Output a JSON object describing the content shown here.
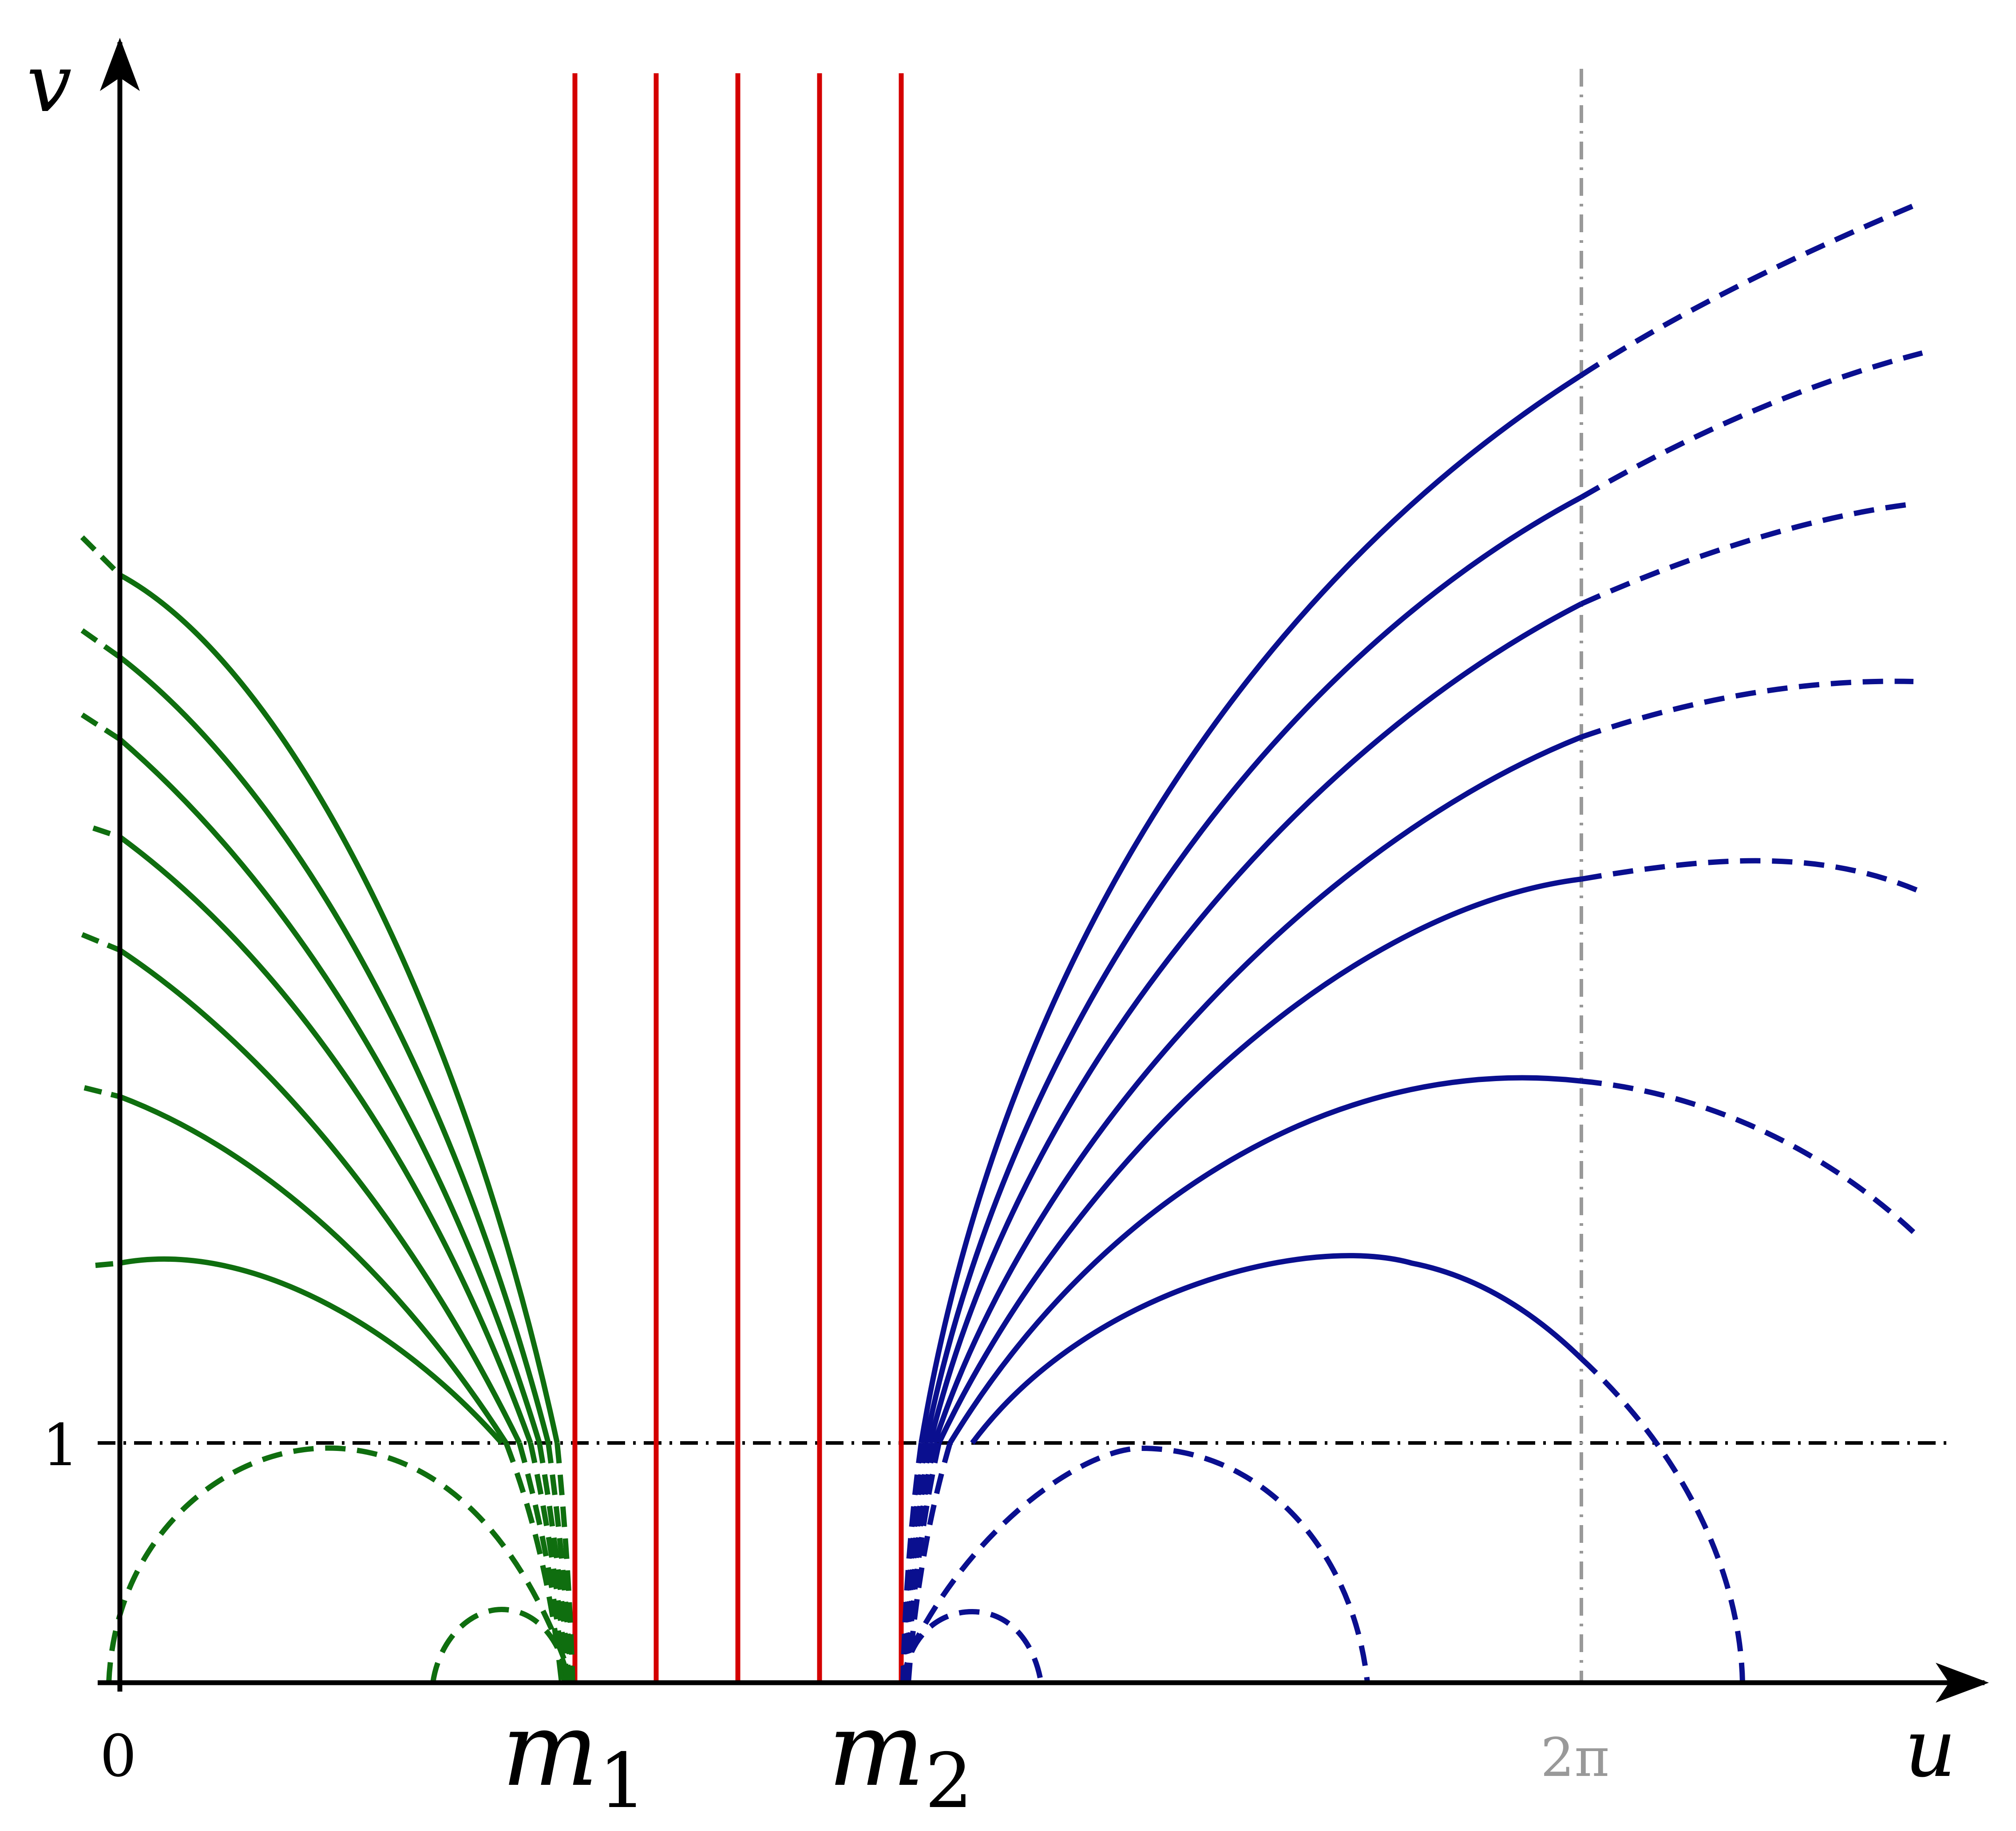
{
  "axes": {
    "x_label": "u",
    "y_label": "v",
    "origin_label": "0",
    "y_tick_label": "1",
    "x_special_label": "2π"
  },
  "markers": {
    "m1": {
      "base": "m",
      "sub": "1"
    },
    "m2": {
      "base": "m",
      "sub": "2"
    }
  },
  "colors": {
    "green": "#0f6e0f",
    "blue": "#0a0f8f",
    "red": "#d40000",
    "gray": "#999999",
    "black": "#000000"
  },
  "chart_data": {
    "type": "diagram",
    "red_vertical_lines": 5,
    "reference_lines": [
      "v = 1 (dash-dot)",
      "u = 2π (dash-dot, gray)"
    ]
  }
}
